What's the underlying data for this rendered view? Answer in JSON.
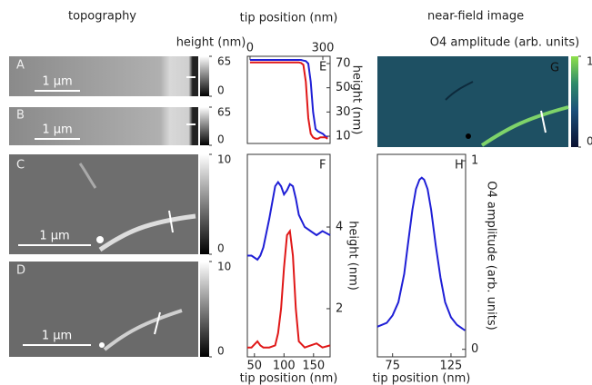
{
  "headers": {
    "left": "topography",
    "right": "near-field image"
  },
  "images": [
    {
      "label": "A",
      "scale_bar": "1 µm",
      "colorbar": {
        "title": "height (nm)",
        "clim": [
          0,
          65
        ],
        "ticks": [
          0,
          65
        ]
      }
    },
    {
      "label": "B",
      "scale_bar": "1 µm",
      "colorbar": {
        "clim": [
          0,
          65
        ],
        "ticks": [
          0,
          65
        ]
      }
    },
    {
      "label": "C",
      "scale_bar": "1 µm",
      "colorbar": {
        "clim": [
          0,
          10
        ],
        "ticks": [
          0,
          10
        ]
      }
    },
    {
      "label": "D",
      "scale_bar": "1 µm",
      "colorbar": {
        "clim": [
          0,
          10
        ],
        "ticks": [
          0,
          10
        ]
      }
    },
    {
      "label": "G",
      "colorbar": {
        "title": "O4 amplitude (arb. units)",
        "clim": [
          0,
          1
        ],
        "ticks": [
          0,
          1
        ]
      }
    }
  ],
  "chart_data": [
    {
      "type": "line",
      "label": "E",
      "xlabel": "tip position (nm)",
      "ylabel": "height (nm)",
      "x_axis_position": "top",
      "x": [
        0,
        25,
        50,
        75,
        100,
        125,
        150,
        175,
        200,
        210,
        220,
        230,
        240,
        250,
        260,
        270,
        280,
        290,
        300,
        310,
        320
      ],
      "series": [
        {
          "color": "#1f1fd6",
          "values": [
            73,
            73,
            73,
            73,
            73,
            73,
            73,
            73,
            73,
            73,
            72.5,
            72,
            70,
            55,
            30,
            16,
            14,
            13,
            12,
            10,
            9
          ]
        },
        {
          "color": "#e01818",
          "values": [
            71,
            71,
            71,
            71,
            71,
            71,
            71,
            71,
            71,
            70.5,
            69,
            55,
            25,
            12,
            9,
            8,
            8,
            9,
            9,
            9,
            8
          ]
        }
      ],
      "xlim": [
        -11,
        330
      ],
      "ylim": [
        4,
        76
      ],
      "xticks": [
        0,
        300
      ],
      "yticks": [
        10,
        30,
        50,
        70
      ]
    },
    {
      "type": "line",
      "label": "F",
      "xlabel": "tip position (nm)",
      "ylabel": "height (nm)",
      "x_axis_position": "bottom",
      "x": [
        38,
        45,
        55,
        60,
        65,
        75,
        85,
        90,
        95,
        100,
        105,
        110,
        115,
        120,
        125,
        135,
        145,
        155,
        165,
        178
      ],
      "series": [
        {
          "color": "#1f1fd6",
          "values": [
            3.3,
            3.3,
            3.2,
            3.3,
            3.5,
            4.2,
            5.0,
            5.1,
            5.0,
            4.8,
            4.9,
            5.05,
            5.0,
            4.7,
            4.3,
            4.0,
            3.9,
            3.8,
            3.9,
            3.8
          ]
        },
        {
          "color": "#e01818",
          "values": [
            1.05,
            1.05,
            1.2,
            1.1,
            1.05,
            1.05,
            1.1,
            1.4,
            2.0,
            3.0,
            3.8,
            3.9,
            3.3,
            2.0,
            1.2,
            1.05,
            1.1,
            1.15,
            1.05,
            1.1
          ]
        }
      ],
      "xlim": [
        38,
        178
      ],
      "ylim": [
        0.82,
        5.78
      ],
      "xticks": [
        50,
        100,
        150
      ],
      "yticks": [
        2,
        4
      ]
    },
    {
      "type": "line",
      "label": "H",
      "xlabel": "tip position (nm)",
      "ylabel": "O4 amplitude (arb. units)",
      "x_axis_position": "bottom",
      "x": [
        62,
        70,
        75,
        80,
        85,
        88,
        92,
        95,
        98,
        100,
        102,
        105,
        108,
        112,
        116,
        120,
        125,
        130,
        137
      ],
      "series": [
        {
          "color": "#1f1fd6",
          "values": [
            0.12,
            0.14,
            0.18,
            0.25,
            0.4,
            0.55,
            0.74,
            0.85,
            0.9,
            0.91,
            0.9,
            0.85,
            0.74,
            0.55,
            0.38,
            0.25,
            0.17,
            0.13,
            0.1
          ]
        }
      ],
      "xlim": [
        62,
        137.5
      ],
      "ylim": [
        -0.04,
        1.034
      ],
      "xticks": [
        75,
        125
      ],
      "yticks": [
        0,
        1
      ]
    }
  ]
}
